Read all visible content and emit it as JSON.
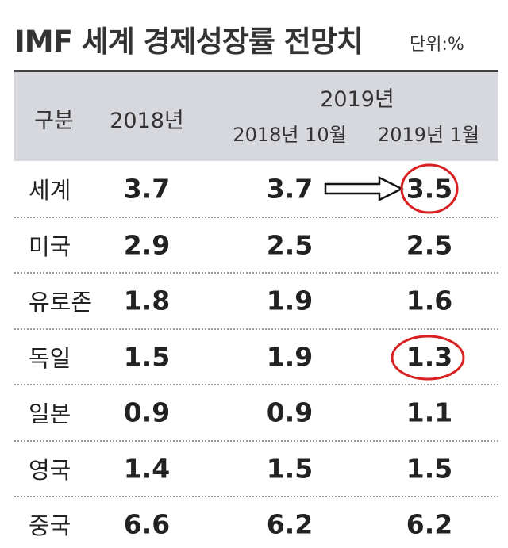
{
  "header": {
    "title": "IMF 세계 경제성장률 전망치",
    "unit": "단위:%"
  },
  "table": {
    "columns": {
      "label": "구분",
      "y2018": "2018년",
      "y2019": "2019년",
      "oct2018": "2018년 10월",
      "jan2019": "2019년 1월"
    },
    "rows": [
      [
        "세계",
        "3.7",
        "3.7",
        "3.5"
      ],
      [
        "미국",
        "2.9",
        "2.5",
        "2.5"
      ],
      [
        "유로존",
        "1.8",
        "1.9",
        "1.6"
      ],
      [
        "독일",
        "1.5",
        "1.9",
        "1.3"
      ],
      [
        "일본",
        "0.9",
        "0.9",
        "1.1"
      ],
      [
        "영국",
        "1.4",
        "1.5",
        "1.5"
      ],
      [
        "중국",
        "6.6",
        "6.2",
        "6.2"
      ]
    ]
  }
}
